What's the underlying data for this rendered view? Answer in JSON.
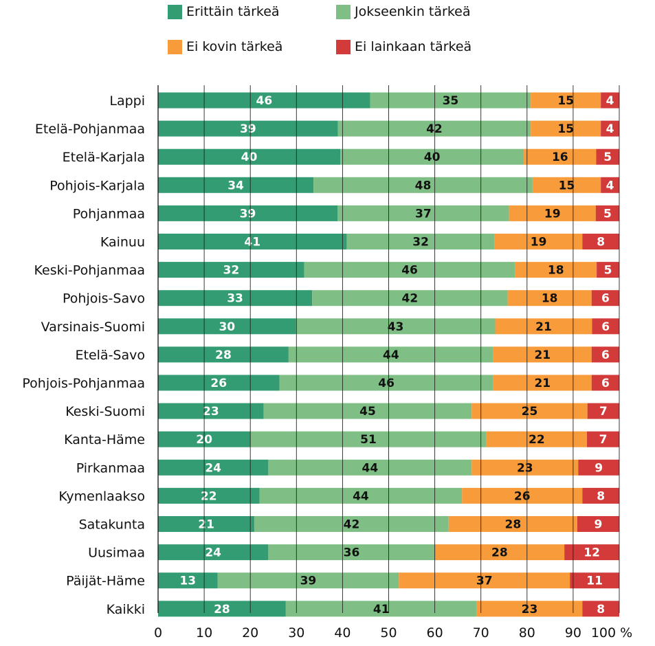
{
  "chart_data": {
    "type": "bar",
    "orientation": "horizontal",
    "stacked": true,
    "categories": [
      "Lappi",
      "Etelä-Pohjanmaa",
      "Etelä-Karjala",
      "Pohjois-Karjala",
      "Pohjanmaa",
      "Kainuu",
      "Keski-Pohjanmaa",
      "Pohjois-Savo",
      "Varsinais-Suomi",
      "Etelä-Savo",
      "Pohjois-Pohjanmaa",
      "Keski-Suomi",
      "Kanta-Häme",
      "Pirkanmaa",
      "Kymenlaakso",
      "Satakunta",
      "Uusimaa",
      "Päijät-Häme",
      "Kaikki"
    ],
    "series": [
      {
        "name": "Erittäin tärkeä",
        "color": "#339c72",
        "label_color": "#ffffff",
        "values": [
          46,
          39,
          40,
          34,
          39,
          41,
          32,
          33,
          30,
          28,
          26,
          23,
          20,
          24,
          22,
          21,
          24,
          13,
          28
        ],
        "plot_values": [
          46,
          39,
          39.5,
          33.7,
          38.9,
          40.9,
          31.7,
          33.4,
          29.9,
          28.3,
          26.3,
          22.9,
          20,
          23.9,
          22,
          20.9,
          23.9,
          12.9,
          27.7
        ]
      },
      {
        "name": "Jokseenkin tärkeä",
        "color": "#7fbf85",
        "label_color": "#111111",
        "values": [
          35,
          42,
          40,
          48,
          37,
          32,
          46,
          42,
          43,
          44,
          46,
          45,
          51,
          44,
          44,
          42,
          36,
          39,
          41
        ],
        "plot_values": [
          34.8,
          41.8,
          39.8,
          47.5,
          37.2,
          32.1,
          45.7,
          42.4,
          43.2,
          44.4,
          46.4,
          45.1,
          51.2,
          44.1,
          43.9,
          42.1,
          36.1,
          39.3,
          41.4
        ]
      },
      {
        "name": "Ei kovin tärkeä",
        "color": "#f89b3a",
        "label_color": "#111111",
        "values": [
          15,
          15,
          16,
          15,
          19,
          19,
          18,
          18,
          21,
          21,
          21,
          25,
          22,
          23,
          26,
          28,
          28,
          37,
          23
        ],
        "plot_values": [
          15.2,
          15.2,
          15.7,
          14.8,
          18.8,
          19,
          17.7,
          18.2,
          21,
          21.3,
          21.3,
          25.1,
          21.8,
          23.1,
          26.1,
          27.9,
          28.1,
          37.1,
          22.9
        ]
      },
      {
        "name": "Ei lainkaan tärkeä",
        "color": "#d33a3a",
        "label_color": "#ffffff",
        "values": [
          4,
          4,
          5,
          4,
          5,
          8,
          5,
          6,
          6,
          6,
          6,
          7,
          7,
          9,
          8,
          9,
          12,
          11,
          8
        ],
        "plot_values": [
          4,
          4,
          5,
          4,
          5.1,
          8,
          4.9,
          6,
          5.9,
          6,
          6,
          6.9,
          7,
          8.9,
          8,
          9.1,
          11.9,
          10.7,
          8
        ]
      }
    ],
    "x_ticks": [
      "0",
      "10",
      "20",
      "30",
      "40",
      "50",
      "60",
      "70",
      "80",
      "90",
      "100 %"
    ],
    "xlim": [
      0,
      100
    ],
    "legend_position": "top",
    "grid": "vertical"
  }
}
